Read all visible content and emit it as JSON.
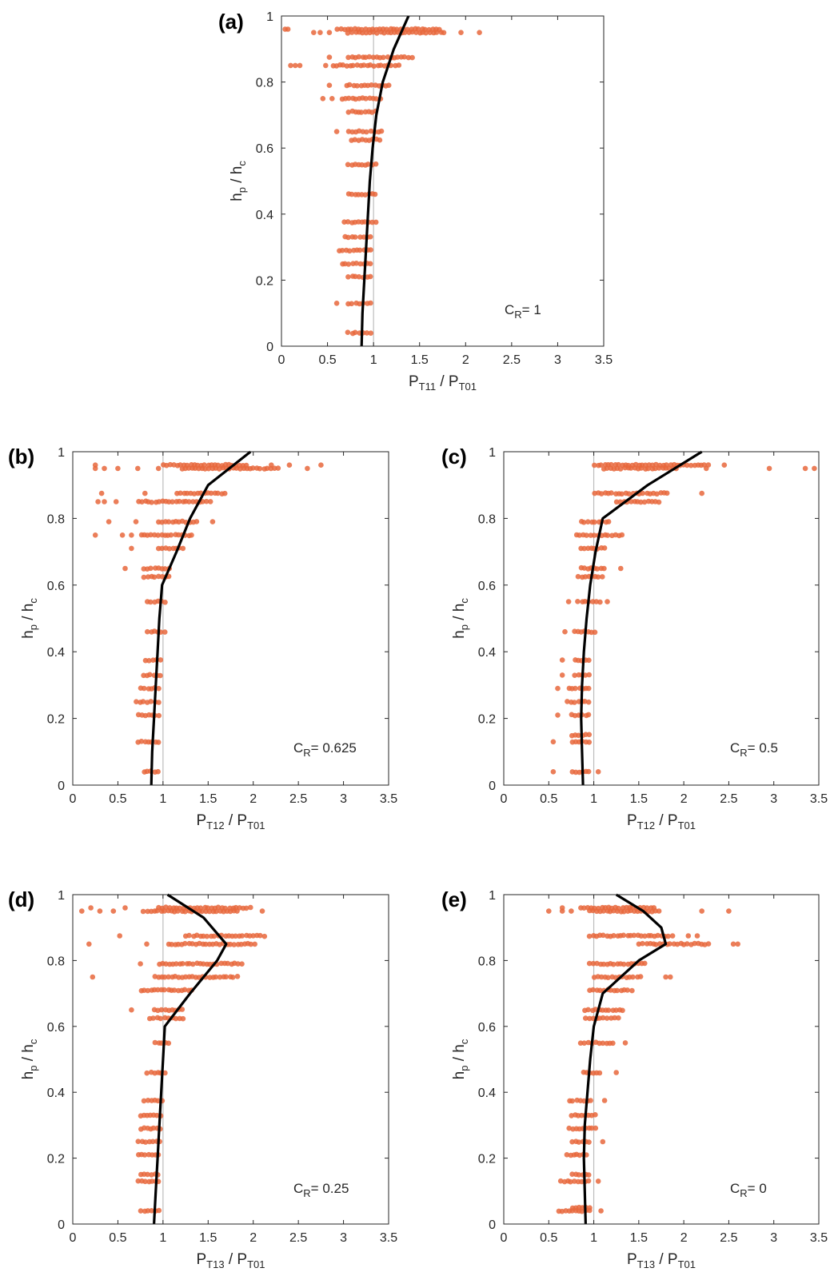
{
  "colors": {
    "points": "#E8673C",
    "curve": "#000000",
    "reference": "#BDBDBD",
    "axis": "#262626"
  },
  "chart_data": [
    {
      "panel_label": "(a)",
      "type": "scatter",
      "xlabel": "P_T11 / P_T01",
      "xlabel_parts": [
        "P",
        "T11",
        " / P",
        "T01"
      ],
      "ylabel": "h_p / h_c",
      "ylabel_parts": [
        "h",
        "p",
        " / h",
        "c"
      ],
      "xlim": [
        0,
        3.5
      ],
      "ylim": [
        0,
        1
      ],
      "xticks": [
        "0",
        "0.5",
        "1",
        "1.5",
        "2",
        "2.5",
        "3",
        "3.5"
      ],
      "yticks": [
        "0",
        "0.2",
        "0.4",
        "0.6",
        "0.8",
        "1"
      ],
      "annotation": "C_R = 1",
      "annotation_parts": [
        "C",
        "R",
        "= 1"
      ],
      "reference_x": 1,
      "levels": [
        {
          "y": 0.04,
          "xmin": 0.72,
          "xmax": 1.0,
          "outliers": []
        },
        {
          "y": 0.13,
          "xmin": 0.72,
          "xmax": 1.0,
          "outliers": [
            0.6
          ]
        },
        {
          "y": 0.21,
          "xmin": 0.72,
          "xmax": 1.0,
          "outliers": []
        },
        {
          "y": 0.25,
          "xmin": 0.65,
          "xmax": 1.0,
          "outliers": []
        },
        {
          "y": 0.29,
          "xmin": 0.62,
          "xmax": 1.0,
          "outliers": []
        },
        {
          "y": 0.33,
          "xmin": 0.68,
          "xmax": 1.0,
          "outliers": []
        },
        {
          "y": 0.375,
          "xmin": 0.68,
          "xmax": 1.05,
          "outliers": []
        },
        {
          "y": 0.46,
          "xmin": 0.72,
          "xmax": 1.05,
          "outliers": []
        },
        {
          "y": 0.55,
          "xmin": 0.72,
          "xmax": 1.05,
          "outliers": []
        },
        {
          "y": 0.625,
          "xmin": 0.75,
          "xmax": 1.1,
          "outliers": []
        },
        {
          "y": 0.65,
          "xmin": 0.72,
          "xmax": 1.12,
          "outliers": [
            0.6
          ]
        },
        {
          "y": 0.71,
          "xmin": 0.72,
          "xmax": 1.05,
          "outliers": []
        },
        {
          "y": 0.75,
          "xmin": 0.65,
          "xmax": 1.1,
          "outliers": [
            0.45,
            0.55
          ]
        },
        {
          "y": 0.79,
          "xmin": 0.7,
          "xmax": 1.2,
          "outliers": [
            0.52
          ]
        },
        {
          "y": 0.85,
          "xmin": 0.55,
          "xmax": 1.3,
          "outliers": [
            0.1,
            0.15,
            0.2,
            0.48
          ]
        },
        {
          "y": 0.875,
          "xmin": 0.72,
          "xmax": 1.45,
          "outliers": [
            0.52
          ]
        },
        {
          "y": 0.95,
          "xmin": 0.72,
          "xmax": 1.8,
          "outliers": [
            0.35,
            0.42,
            0.52,
            1.95,
            2.15
          ]
        },
        {
          "y": 0.96,
          "xmin": 0.6,
          "xmax": 1.75,
          "outliers": [
            0.04,
            0.07
          ]
        }
      ],
      "curve": {
        "x": [
          0.87,
          0.88,
          0.9,
          0.92,
          0.94,
          0.96,
          0.99,
          1.03,
          1.1,
          1.22,
          1.38
        ],
        "y": [
          0,
          0.1,
          0.2,
          0.3,
          0.4,
          0.5,
          0.6,
          0.7,
          0.8,
          0.9,
          1.0
        ]
      }
    },
    {
      "panel_label": "(b)",
      "type": "scatter",
      "xlabel": "P_T12 / P_T01",
      "xlabel_parts": [
        "P",
        "T12",
        " / P",
        "T01"
      ],
      "ylabel": "h_p / h_c",
      "ylabel_parts": [
        "h",
        "p",
        " / h",
        "c"
      ],
      "xlim": [
        0,
        3.5
      ],
      "ylim": [
        0,
        1
      ],
      "xticks": [
        "0",
        "0.5",
        "1",
        "1.5",
        "2",
        "2.5",
        "3",
        "3.5"
      ],
      "yticks": [
        "0",
        "0.2",
        "0.4",
        "0.6",
        "0.8",
        "1"
      ],
      "annotation": "C_R = 0.625",
      "annotation_parts": [
        "C",
        "R",
        "= 0.625"
      ],
      "reference_x": 1,
      "levels": [
        {
          "y": 0.04,
          "xmin": 0.78,
          "xmax": 0.98,
          "outliers": []
        },
        {
          "y": 0.13,
          "xmin": 0.72,
          "xmax": 0.98,
          "outliers": []
        },
        {
          "y": 0.21,
          "xmin": 0.72,
          "xmax": 0.98,
          "outliers": []
        },
        {
          "y": 0.25,
          "xmin": 0.7,
          "xmax": 0.98,
          "outliers": []
        },
        {
          "y": 0.29,
          "xmin": 0.75,
          "xmax": 0.98,
          "outliers": []
        },
        {
          "y": 0.33,
          "xmin": 0.78,
          "xmax": 1.0,
          "outliers": []
        },
        {
          "y": 0.375,
          "xmin": 0.8,
          "xmax": 1.0,
          "outliers": []
        },
        {
          "y": 0.46,
          "xmin": 0.82,
          "xmax": 1.05,
          "outliers": []
        },
        {
          "y": 0.55,
          "xmin": 0.82,
          "xmax": 1.05,
          "outliers": []
        },
        {
          "y": 0.625,
          "xmin": 0.78,
          "xmax": 1.1,
          "outliers": []
        },
        {
          "y": 0.65,
          "xmin": 0.78,
          "xmax": 1.1,
          "outliers": [
            0.58
          ]
        },
        {
          "y": 0.71,
          "xmin": 0.95,
          "xmax": 1.25,
          "outliers": [
            0.65
          ]
        },
        {
          "y": 0.75,
          "xmin": 0.75,
          "xmax": 1.35,
          "outliers": [
            0.25,
            0.55,
            0.65
          ]
        },
        {
          "y": 0.79,
          "xmin": 0.95,
          "xmax": 1.4,
          "outliers": [
            0.4,
            0.7,
            1.55
          ]
        },
        {
          "y": 0.85,
          "xmin": 0.72,
          "xmax": 1.55,
          "outliers": [
            0.28,
            0.35,
            0.48
          ]
        },
        {
          "y": 0.875,
          "xmin": 1.15,
          "xmax": 1.72,
          "outliers": [
            0.32,
            0.8
          ]
        },
        {
          "y": 0.95,
          "xmin": 1.2,
          "xmax": 2.3,
          "outliers": [
            0.25,
            0.35,
            0.5,
            0.72,
            0.95,
            2.6
          ]
        },
        {
          "y": 0.96,
          "xmin": 1.0,
          "xmax": 1.95,
          "outliers": [
            0.25,
            2.2,
            2.4,
            2.75
          ]
        }
      ],
      "curve": {
        "x": [
          0.87,
          0.88,
          0.9,
          0.92,
          0.94,
          0.96,
          0.99,
          1.15,
          1.3,
          1.5,
          1.97
        ],
        "y": [
          0,
          0.1,
          0.2,
          0.3,
          0.4,
          0.5,
          0.6,
          0.7,
          0.8,
          0.9,
          1.0
        ]
      }
    },
    {
      "panel_label": "(c)",
      "type": "scatter",
      "xlabel": "P_T12 / P_T01",
      "xlabel_parts": [
        "P",
        "T12",
        " / P",
        "T01"
      ],
      "ylabel": "h_p / h_c",
      "ylabel_parts": [
        "h",
        "p",
        " / h",
        "c"
      ],
      "xlim": [
        0,
        3.5
      ],
      "ylim": [
        0,
        1
      ],
      "xticks": [
        "0",
        "0.5",
        "1",
        "1.5",
        "2",
        "2.5",
        "3",
        "3.5"
      ],
      "yticks": [
        "0",
        "0.2",
        "0.4",
        "0.6",
        "0.8",
        "1"
      ],
      "annotation": "C_R = 0.5",
      "annotation_parts": [
        "C",
        "R",
        "= 0.5"
      ],
      "reference_x": 1,
      "levels": [
        {
          "y": 0.04,
          "xmin": 0.75,
          "xmax": 0.98,
          "outliers": [
            0.55,
            1.05
          ]
        },
        {
          "y": 0.13,
          "xmin": 0.75,
          "xmax": 0.98,
          "outliers": [
            0.55
          ]
        },
        {
          "y": 0.15,
          "xmin": 0.75,
          "xmax": 0.98,
          "outliers": []
        },
        {
          "y": 0.21,
          "xmin": 0.75,
          "xmax": 0.98,
          "outliers": [
            0.6
          ]
        },
        {
          "y": 0.25,
          "xmin": 0.7,
          "xmax": 0.98,
          "outliers": []
        },
        {
          "y": 0.29,
          "xmin": 0.72,
          "xmax": 0.98,
          "outliers": [
            0.6
          ]
        },
        {
          "y": 0.33,
          "xmin": 0.78,
          "xmax": 0.98,
          "outliers": [
            0.65
          ]
        },
        {
          "y": 0.375,
          "xmin": 0.78,
          "xmax": 0.98,
          "outliers": [
            0.65
          ]
        },
        {
          "y": 0.46,
          "xmin": 0.78,
          "xmax": 1.05,
          "outliers": [
            0.68
          ]
        },
        {
          "y": 0.55,
          "xmin": 0.82,
          "xmax": 1.1,
          "outliers": [
            0.72,
            1.15
          ]
        },
        {
          "y": 0.625,
          "xmin": 0.82,
          "xmax": 1.12,
          "outliers": []
        },
        {
          "y": 0.65,
          "xmin": 0.85,
          "xmax": 1.15,
          "outliers": [
            1.3
          ]
        },
        {
          "y": 0.71,
          "xmin": 0.85,
          "xmax": 1.15,
          "outliers": []
        },
        {
          "y": 0.75,
          "xmin": 0.8,
          "xmax": 1.35,
          "outliers": []
        },
        {
          "y": 0.79,
          "xmin": 0.85,
          "xmax": 1.2,
          "outliers": []
        },
        {
          "y": 0.85,
          "xmin": 1.25,
          "xmax": 1.75,
          "outliers": []
        },
        {
          "y": 0.875,
          "xmin": 1.0,
          "xmax": 1.85,
          "outliers": [
            2.2
          ]
        },
        {
          "y": 0.95,
          "xmin": 1.1,
          "xmax": 1.95,
          "outliers": [
            2.25,
            2.95,
            3.35,
            3.45
          ]
        },
        {
          "y": 0.96,
          "xmin": 1.0,
          "xmax": 2.3,
          "outliers": [
            2.45
          ]
        }
      ],
      "curve": {
        "x": [
          0.88,
          0.87,
          0.86,
          0.87,
          0.89,
          0.92,
          0.96,
          1.02,
          1.1,
          1.6,
          2.2
        ],
        "y": [
          0,
          0.1,
          0.2,
          0.3,
          0.4,
          0.5,
          0.6,
          0.7,
          0.8,
          0.9,
          1.0
        ]
      }
    },
    {
      "panel_label": "(d)",
      "type": "scatter",
      "xlabel": "P_T13 / P_T01",
      "xlabel_parts": [
        "P",
        "T13",
        " / P",
        "T01"
      ],
      "ylabel": "h_p / h_c",
      "ylabel_parts": [
        "h",
        "p",
        " / h",
        "c"
      ],
      "xlim": [
        0,
        3.5
      ],
      "ylim": [
        0,
        1
      ],
      "xticks": [
        "0",
        "0.5",
        "1",
        "1.5",
        "2",
        "2.5",
        "3",
        "3.5"
      ],
      "yticks": [
        "0",
        "0.2",
        "0.4",
        "0.6",
        "0.8",
        "1"
      ],
      "annotation": "C_R = 0.25",
      "annotation_parts": [
        "C",
        "R",
        "= 0.25"
      ],
      "reference_x": 1,
      "levels": [
        {
          "y": 0.04,
          "xmin": 0.75,
          "xmax": 0.98,
          "outliers": []
        },
        {
          "y": 0.13,
          "xmin": 0.72,
          "xmax": 0.98,
          "outliers": []
        },
        {
          "y": 0.15,
          "xmin": 0.75,
          "xmax": 0.98,
          "outliers": []
        },
        {
          "y": 0.21,
          "xmin": 0.72,
          "xmax": 0.98,
          "outliers": []
        },
        {
          "y": 0.25,
          "xmin": 0.72,
          "xmax": 1.0,
          "outliers": []
        },
        {
          "y": 0.29,
          "xmin": 0.75,
          "xmax": 1.0,
          "outliers": []
        },
        {
          "y": 0.33,
          "xmin": 0.75,
          "xmax": 1.0,
          "outliers": []
        },
        {
          "y": 0.375,
          "xmin": 0.78,
          "xmax": 1.02,
          "outliers": []
        },
        {
          "y": 0.46,
          "xmin": 0.82,
          "xmax": 1.05,
          "outliers": []
        },
        {
          "y": 0.55,
          "xmin": 0.9,
          "xmax": 1.1,
          "outliers": []
        },
        {
          "y": 0.625,
          "xmin": 0.85,
          "xmax": 1.25,
          "outliers": []
        },
        {
          "y": 0.65,
          "xmin": 0.9,
          "xmax": 1.25,
          "outliers": [
            0.65
          ]
        },
        {
          "y": 0.71,
          "xmin": 0.75,
          "xmax": 1.35,
          "outliers": []
        },
        {
          "y": 0.75,
          "xmin": 0.9,
          "xmax": 1.85,
          "outliers": [
            0.22
          ]
        },
        {
          "y": 0.79,
          "xmin": 0.95,
          "xmax": 1.9,
          "outliers": [
            0.75
          ]
        },
        {
          "y": 0.85,
          "xmin": 1.05,
          "xmax": 2.05,
          "outliers": [
            0.18,
            0.82
          ]
        },
        {
          "y": 0.875,
          "xmin": 1.25,
          "xmax": 2.15,
          "outliers": [
            0.52
          ]
        },
        {
          "y": 0.95,
          "xmin": 0.78,
          "xmax": 1.85,
          "outliers": [
            0.1,
            0.3,
            0.45,
            2.1
          ]
        },
        {
          "y": 0.96,
          "xmin": 0.95,
          "xmax": 2.0,
          "outliers": [
            0.2,
            0.58
          ]
        }
      ],
      "curve": {
        "x": [
          0.9,
          0.92,
          0.94,
          0.96,
          0.98,
          1.0,
          1.02,
          1.3,
          1.6,
          1.7,
          1.45,
          1.05
        ],
        "y": [
          0,
          0.1,
          0.2,
          0.3,
          0.4,
          0.5,
          0.6,
          0.7,
          0.8,
          0.85,
          0.93,
          1.0
        ]
      }
    },
    {
      "panel_label": "(e)",
      "type": "scatter",
      "xlabel": "P_T13 / P_T01",
      "xlabel_parts": [
        "P",
        "T13",
        " / P",
        "T01"
      ],
      "ylabel": "h_p / h_c",
      "ylabel_parts": [
        "h",
        "p",
        " / h",
        "c"
      ],
      "xlim": [
        0,
        3.5
      ],
      "ylim": [
        0,
        1
      ],
      "xticks": [
        "0",
        "0.5",
        "1",
        "1.5",
        "2",
        "2.5",
        "3",
        "3.5"
      ],
      "yticks": [
        "0",
        "0.2",
        "0.4",
        "0.6",
        "0.8",
        "1"
      ],
      "annotation": "C_R = 0",
      "annotation_parts": [
        "C",
        "R",
        "= 0"
      ],
      "reference_x": 1,
      "levels": [
        {
          "y": 0.04,
          "xmin": 0.6,
          "xmax": 0.98,
          "outliers": [
            1.08
          ]
        },
        {
          "y": 0.05,
          "xmin": 0.75,
          "xmax": 0.98,
          "outliers": []
        },
        {
          "y": 0.13,
          "xmin": 0.62,
          "xmax": 0.98,
          "outliers": [
            1.05
          ]
        },
        {
          "y": 0.15,
          "xmin": 0.75,
          "xmax": 0.98,
          "outliers": []
        },
        {
          "y": 0.21,
          "xmin": 0.7,
          "xmax": 0.95,
          "outliers": []
        },
        {
          "y": 0.25,
          "xmin": 0.75,
          "xmax": 0.98,
          "outliers": [
            1.1
          ]
        },
        {
          "y": 0.29,
          "xmin": 0.72,
          "xmax": 1.05,
          "outliers": []
        },
        {
          "y": 0.33,
          "xmin": 0.75,
          "xmax": 1.05,
          "outliers": []
        },
        {
          "y": 0.375,
          "xmin": 0.72,
          "xmax": 1.0,
          "outliers": [
            1.12
          ]
        },
        {
          "y": 0.46,
          "xmin": 0.88,
          "xmax": 1.1,
          "outliers": [
            1.25
          ]
        },
        {
          "y": 0.55,
          "xmin": 0.85,
          "xmax": 1.25,
          "outliers": [
            1.35
          ]
        },
        {
          "y": 0.625,
          "xmin": 0.9,
          "xmax": 1.3,
          "outliers": []
        },
        {
          "y": 0.65,
          "xmin": 0.9,
          "xmax": 1.35,
          "outliers": []
        },
        {
          "y": 0.71,
          "xmin": 0.95,
          "xmax": 1.45,
          "outliers": []
        },
        {
          "y": 0.75,
          "xmin": 1.0,
          "xmax": 1.55,
          "outliers": [
            1.8,
            1.85
          ]
        },
        {
          "y": 0.79,
          "xmin": 0.95,
          "xmax": 1.6,
          "outliers": []
        },
        {
          "y": 0.85,
          "xmin": 1.5,
          "xmax": 2.3,
          "outliers": [
            2.55,
            2.6
          ]
        },
        {
          "y": 0.875,
          "xmin": 0.95,
          "xmax": 1.9,
          "outliers": [
            2.05,
            2.15
          ]
        },
        {
          "y": 0.95,
          "xmin": 0.95,
          "xmax": 1.75,
          "outliers": [
            0.5,
            0.65,
            0.75,
            2.2,
            2.5
          ]
        },
        {
          "y": 0.96,
          "xmin": 0.85,
          "xmax": 1.7,
          "outliers": [
            0.65
          ]
        }
      ],
      "curve": {
        "x": [
          0.91,
          0.9,
          0.89,
          0.9,
          0.93,
          0.96,
          1.0,
          1.1,
          1.5,
          1.8,
          1.75,
          1.55,
          1.25
        ],
        "y": [
          0,
          0.1,
          0.2,
          0.3,
          0.4,
          0.5,
          0.6,
          0.7,
          0.8,
          0.85,
          0.9,
          0.95,
          1.0
        ]
      }
    }
  ]
}
